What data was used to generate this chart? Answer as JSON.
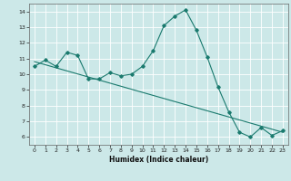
{
  "xlabel": "Humidex (Indice chaleur)",
  "ylabel": "",
  "bg_color": "#cce8e8",
  "line_color": "#1a7a6e",
  "grid_color": "#ffffff",
  "xlim": [
    -0.5,
    23.5
  ],
  "ylim": [
    5.5,
    14.5
  ],
  "xticks": [
    0,
    1,
    2,
    3,
    4,
    5,
    6,
    7,
    8,
    9,
    10,
    11,
    12,
    13,
    14,
    15,
    16,
    17,
    18,
    19,
    20,
    21,
    22,
    23
  ],
  "yticks": [
    6,
    7,
    8,
    9,
    10,
    11,
    12,
    13,
    14
  ],
  "series1_x": [
    0,
    1,
    2,
    3,
    4,
    5,
    6,
    7,
    8,
    9,
    10,
    11,
    12,
    13,
    14,
    15,
    16,
    17,
    18,
    19,
    20,
    21,
    22,
    23
  ],
  "series1_y": [
    10.5,
    10.9,
    10.5,
    11.4,
    11.2,
    9.7,
    9.7,
    10.1,
    9.9,
    10.0,
    10.5,
    11.5,
    13.1,
    13.7,
    14.1,
    12.8,
    11.1,
    9.2,
    7.6,
    6.3,
    6.0,
    6.6,
    6.1,
    6.4
  ],
  "trend_x": [
    0,
    23
  ],
  "trend_y": [
    10.8,
    6.3
  ]
}
